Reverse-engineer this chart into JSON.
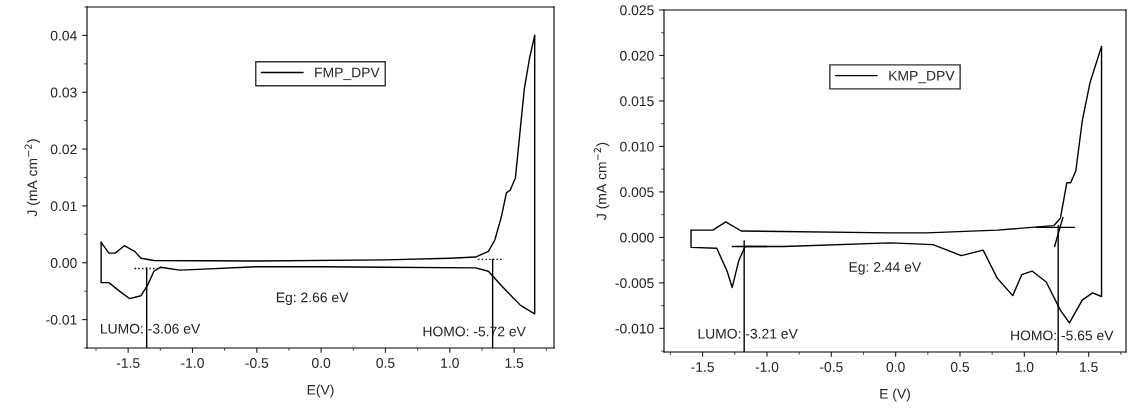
{
  "chart_data": [
    {
      "type": "line",
      "xlabel": "E(V)",
      "ylabel": "J (mA cm$^{−2}$)",
      "xlim": [
        -1.82,
        1.81
      ],
      "ylim": [
        -0.015,
        0.045
      ],
      "xticks": [
        -1.5,
        {
          "value": -1.0,
          "label": "-1.0"
        },
        -0.5,
        {
          "value": 0.0,
          "label": "0.0"
        },
        0.5,
        {
          "value": 1.0,
          "label": "1.0"
        },
        1.5
      ],
      "yticks": [
        {
          "value": -0.01,
          "label": "-0.01"
        },
        {
          "value": 0.0,
          "label": "0.00"
        },
        {
          "value": 0.01,
          "label": "0.01"
        },
        {
          "value": 0.02,
          "label": "0.02"
        },
        {
          "value": 0.03,
          "label": "0.03"
        },
        {
          "value": 0.04,
          "label": "0.04"
        }
      ],
      "grid": false,
      "legend": "top",
      "marker": "none",
      "series": [
        {
          "name": "FMP_DPV",
          "color": "#000000",
          "line_style": "solid",
          "x": [
            -1.71,
            -1.65,
            -1.6,
            -1.53,
            -1.45,
            -1.4,
            -1.3,
            -0.5,
            0.5,
            1.0,
            1.2,
            1.3,
            1.35,
            1.4,
            1.44,
            1.47,
            1.51,
            1.55,
            1.58,
            1.62,
            1.66
          ],
          "values": [
            0.0036,
            0.0017,
            0.0017,
            0.003,
            0.002,
            0.0008,
            0.0004,
            0.0003,
            0.0005,
            0.0008,
            0.001,
            0.002,
            0.004,
            0.008,
            0.0123,
            0.0128,
            0.0149,
            0.024,
            0.0307,
            0.036,
            0.04
          ]
        },
        {
          "color": "#000000",
          "line_style": "solid",
          "x": [
            -1.71,
            -1.71,
            -1.65,
            -1.55,
            -1.49,
            -1.4,
            -1.35,
            -1.3,
            -1.25,
            -1.1,
            -1.0,
            -0.5,
            0.0,
            0.5,
            1.2,
            1.3,
            1.4,
            1.55,
            1.66,
            1.66
          ],
          "values": [
            0.0036,
            -0.0035,
            -0.0035,
            -0.0053,
            -0.0063,
            -0.0058,
            -0.004,
            -0.0015,
            -0.0008,
            -0.0013,
            -0.0012,
            -0.0007,
            -0.0007,
            -0.0008,
            -0.0009,
            -0.0015,
            -0.004,
            -0.0075,
            -0.009,
            0.04
          ]
        },
        {
          "color": "#000000",
          "line_style": "solid",
          "x": [
            -1.356,
            -1.356
          ],
          "values": [
            -0.015,
            -0.0009
          ]
        },
        {
          "color": "#000000",
          "line_style": "solid",
          "x": [
            1.333,
            1.333
          ],
          "values": [
            -0.015,
            0.0006
          ]
        },
        {
          "color": "#000000",
          "line_style": "dotted",
          "x": [
            -1.45,
            -1.25
          ],
          "values": [
            -0.001,
            -0.001
          ]
        },
        {
          "color": "#000000",
          "line_style": "dotted",
          "x": [
            1.22,
            1.42
          ],
          "values": [
            0.0006,
            0.0006
          ]
        }
      ],
      "annotations": [
        "LUMO: -3.06 eV",
        "Eg: 2.66 eV",
        "HOMO: -5.72 eV"
      ]
    },
    {
      "type": "line",
      "xlabel": "E (V)",
      "ylabel": "J (mA cm$^{−2}$)",
      "xlim": [
        -1.8,
        1.79
      ],
      "ylim": [
        -0.0126,
        0.025
      ],
      "xticks": [
        -1.5,
        {
          "value": -1.0,
          "label": "-1.0"
        },
        -0.5,
        {
          "value": 0.0,
          "label": "0.0"
        },
        0.5,
        {
          "value": 1.0,
          "label": "1.0"
        },
        1.5
      ],
      "yticks": [
        {
          "value": -0.01,
          "label": "-0.010"
        },
        {
          "value": -0.005,
          "label": "-0.005"
        },
        {
          "value": 0.0,
          "label": "0.000"
        },
        {
          "value": 0.005,
          "label": "0.005"
        },
        {
          "value": 0.01,
          "label": "0.010"
        },
        {
          "value": 0.015,
          "label": "0.015"
        },
        {
          "value": 0.02,
          "label": "0.020"
        },
        {
          "value": 0.025,
          "label": "0.025"
        }
      ],
      "grid": false,
      "legend": "top",
      "marker": "none",
      "series": [
        {
          "name": "KMP_DPV",
          "color": "#000000",
          "line_style": "solid",
          "x": [
            -1.59,
            -1.42,
            -1.32,
            -1.2,
            -0.04,
            0.24,
            0.79,
            1.23,
            1.28,
            1.33,
            1.36,
            1.4,
            1.45,
            1.51,
            1.6
          ],
          "values": [
            0.0008,
            0.0008,
            0.0017,
            0.0007,
            0.0005,
            0.0005,
            0.0008,
            0.0013,
            0.0021,
            0.006,
            0.006,
            0.0073,
            0.0128,
            0.017,
            0.021
          ]
        },
        {
          "color": "#000000",
          "line_style": "solid",
          "x": [
            -1.59,
            -1.59,
            -1.39,
            -1.31,
            -1.27,
            -1.22,
            -1.17,
            -0.87,
            -0.04,
            0.29,
            0.51,
            0.68,
            0.79,
            0.91,
            0.98,
            1.06,
            1.17,
            1.28,
            1.35,
            1.45,
            1.53,
            1.6,
            1.6
          ],
          "values": [
            0.0008,
            -0.0011,
            -0.0012,
            -0.0037,
            -0.0055,
            -0.0026,
            -0.001,
            -0.001,
            -0.0006,
            -0.0008,
            -0.002,
            -0.0014,
            -0.0045,
            -0.0064,
            -0.0041,
            -0.0037,
            -0.0049,
            -0.008,
            -0.0094,
            -0.0069,
            -0.0061,
            -0.0065,
            0.021
          ]
        },
        {
          "color": "#000000",
          "line_style": "solid",
          "x": [
            -1.177,
            -1.177
          ],
          "values": [
            -0.0126,
            -0.0004
          ]
        },
        {
          "color": "#000000",
          "line_style": "solid",
          "x": [
            1.263,
            1.263
          ],
          "values": [
            -0.0126,
            0.0013
          ]
        },
        {
          "color": "#000000",
          "line_style": "solid",
          "x": [
            -1.27,
            -1.0
          ],
          "values": [
            -0.001,
            -0.001
          ]
        },
        {
          "color": "#000000",
          "line_style": "solid",
          "x": [
            1.09,
            1.39
          ],
          "values": [
            0.0011,
            0.0011
          ]
        },
        {
          "color": "#000000",
          "line_style": "solid",
          "x": [
            1.235,
            1.3
          ],
          "values": [
            -0.001,
            0.0022
          ]
        }
      ],
      "annotations": [
        "LUMO: -3.21 eV",
        "Eg: 2.44 eV",
        "HOMO: -5.65 eV"
      ]
    }
  ]
}
